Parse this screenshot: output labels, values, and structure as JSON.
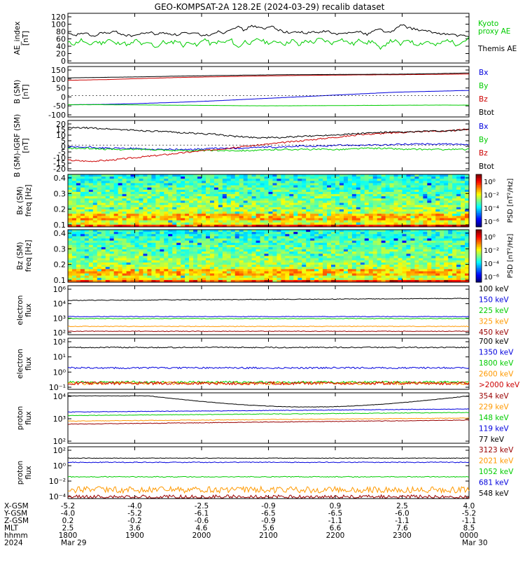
{
  "title": "GEO-KOMPSAT-2A 128.2E (2024-03-29) recalib dataset",
  "colors": {
    "black": "#000000",
    "red": "#cc0000",
    "blue": "#0000dd",
    "green": "#00cc00",
    "orange": "#ff9900",
    "darkred": "#990000",
    "darkblue": "#0000aa"
  },
  "chart_data": [
    {
      "type": "line",
      "ylabel": "AE index [nT]",
      "yticks": [
        "120",
        "100",
        "80",
        "60",
        "40",
        "20",
        "0"
      ],
      "ylim": [
        0,
        120
      ],
      "series": [
        {
          "name": "Kyoto proxy AE",
          "color": "#00cc00",
          "values": [
            48,
            45,
            56,
            40,
            52,
            46,
            58,
            44,
            50,
            40,
            55,
            42,
            48,
            36,
            50,
            46,
            54,
            40,
            52,
            38,
            60,
            44,
            50,
            48,
            56,
            34,
            52,
            46,
            58,
            50,
            47,
            52,
            44,
            56,
            40,
            54,
            48,
            58,
            52,
            46,
            60,
            50,
            44,
            56,
            48,
            52,
            28,
            50,
            54,
            42,
            58,
            44,
            46,
            52,
            40,
            48,
            56,
            44,
            50,
            60
          ]
        },
        {
          "name": "Themis AE",
          "color": "#000000",
          "values": [
            72,
            66,
            74,
            70,
            64,
            76,
            72,
            78,
            70,
            66,
            68,
            72,
            76,
            70,
            74,
            72,
            68,
            75,
            70,
            73,
            66,
            70,
            78,
            74,
            86,
            90,
            80,
            94,
            88,
            84,
            92,
            82,
            76,
            74,
            78,
            72,
            76,
            74,
            80,
            72,
            70,
            74,
            78,
            76,
            70,
            80,
            84,
            74,
            80,
            96,
            88,
            84,
            80,
            78,
            74,
            72,
            70,
            68,
            66,
            64
          ]
        }
      ],
      "legend": [
        "Kyoto proxy AE",
        "Themis AE"
      ]
    },
    {
      "type": "line",
      "ylabel": "B (SM) [nT]",
      "yticks": [
        "150",
        "100",
        "50",
        "0",
        "-50",
        "-100"
      ],
      "ylim": [
        -110,
        155
      ],
      "series": [
        {
          "name": "Bx",
          "color": "#0000dd",
          "values": [
            -52,
            -50,
            -45,
            -38,
            -30,
            -20,
            -10,
            0,
            10,
            20,
            25,
            30
          ]
        },
        {
          "name": "By",
          "color": "#00cc00",
          "values": [
            -52,
            -52,
            -53,
            -55,
            -56,
            -58,
            -58,
            -57,
            -56,
            -55,
            -54,
            -54
          ]
        },
        {
          "name": "Bz",
          "color": "#cc0000",
          "values": [
            88,
            92,
            98,
            104,
            108,
            112,
            115,
            117,
            119,
            120,
            122,
            124
          ]
        },
        {
          "name": "Btot",
          "color": "#000000",
          "values": [
            102,
            105,
            108,
            112,
            115,
            118,
            120,
            121,
            122,
            123,
            126,
            130
          ]
        }
      ],
      "legend": [
        "Bx",
        "By",
        "Bz",
        "Btot"
      ]
    },
    {
      "type": "line",
      "ylabel": "B (SM)-IGRF (SM) [nT]",
      "yticks": [
        "20",
        "15",
        "10",
        "5",
        "0",
        "-5",
        "-10",
        "-15",
        "-20"
      ],
      "ylim": [
        -22,
        21
      ],
      "series": [
        {
          "name": "Bx",
          "color": "#0000dd",
          "values": [
            -2,
            -2,
            -3,
            -3,
            -4,
            -4,
            -4,
            -3,
            -3,
            -2,
            -2,
            -1,
            -1,
            0,
            0,
            0,
            1,
            1,
            1,
            0
          ]
        },
        {
          "name": "By",
          "color": "#00cc00",
          "values": [
            -3,
            -3,
            -4,
            -4,
            -4,
            -5,
            -5,
            -5,
            -5,
            -5,
            -4,
            -4,
            -4,
            -4,
            -3,
            -3,
            -4,
            -4,
            -4,
            -4
          ]
        },
        {
          "name": "Bz",
          "color": "#cc0000",
          "values": [
            -14,
            -15,
            -14,
            -12,
            -10,
            -8,
            -6,
            -4,
            -2,
            0,
            2,
            4,
            6,
            8,
            10,
            11,
            12,
            13,
            13,
            15
          ]
        },
        {
          "name": "Btot",
          "color": "#000000",
          "values": [
            16,
            16,
            15,
            14,
            13,
            12,
            11,
            10,
            8,
            7,
            7,
            8,
            9,
            10,
            11,
            12,
            12,
            13,
            13,
            15
          ]
        }
      ],
      "legend": [
        "Bx",
        "By",
        "Bz",
        "Btot"
      ]
    },
    {
      "type": "heatmap",
      "ylabel": "Bx (SM) freq [Hz]",
      "yticks": [
        "0.4",
        "0.3",
        "0.2",
        "0.1"
      ],
      "colorbar_label": "PSD [nT²/Hz]",
      "colorbar_ticks": [
        "10⁰",
        "10⁻²",
        "10⁻⁴",
        "10⁻⁶"
      ]
    },
    {
      "type": "heatmap",
      "ylabel": "Bz (SM) freq [Hz]",
      "yticks": [
        "0.4",
        "0.3",
        "0.2",
        "0.1"
      ],
      "colorbar_label": "PSD [nT²/Hz]",
      "colorbar_ticks": [
        "10⁰",
        "10⁻²",
        "10⁻⁴",
        "10⁻⁶"
      ]
    },
    {
      "type": "line",
      "ylabel": "electron flux",
      "yticks": [
        "10⁶",
        "10⁴",
        "10³",
        "10²"
      ],
      "series": [
        {
          "name": "100 keV",
          "color": "#000000"
        },
        {
          "name": "150 keV",
          "color": "#0000dd"
        },
        {
          "name": "225 keV",
          "color": "#00cc00"
        },
        {
          "name": "325 keV",
          "color": "#ff9900"
        },
        {
          "name": "450 keV",
          "color": "#990000"
        }
      ],
      "legend": [
        "100 keV",
        "150 keV",
        "225 keV",
        "325 keV",
        "450 keV"
      ]
    },
    {
      "type": "line",
      "ylabel": "electron flux",
      "yticks": [
        "10²",
        "10¹",
        "10⁰",
        "10⁻¹"
      ],
      "series": [
        {
          "name": "700 keV",
          "color": "#000000"
        },
        {
          "name": "1350 keV",
          "color": "#0000dd"
        },
        {
          "name": "1800 keV",
          "color": "#00cc00"
        },
        {
          "name": "2600 keV",
          "color": "#ff9900"
        },
        {
          "name": ">2000 keV",
          "color": "#cc0000"
        }
      ],
      "legend": [
        "700 keV",
        "1350 keV",
        "1800 keV",
        "2600 keV",
        ">2000 keV"
      ]
    },
    {
      "type": "line",
      "ylabel": "proton flux",
      "yticks": [
        "10⁴",
        "10³",
        "10²"
      ],
      "series": [
        {
          "name": "354 keV",
          "color": "#990000"
        },
        {
          "name": "229 keV",
          "color": "#ff9900"
        },
        {
          "name": "148 keV",
          "color": "#00cc00"
        },
        {
          "name": "119 keV",
          "color": "#0000dd"
        },
        {
          "name": "77 keV",
          "color": "#000000"
        }
      ],
      "legend": [
        "354 keV",
        "229 keV",
        "148 keV",
        "119 keV",
        "77 keV"
      ]
    },
    {
      "type": "line",
      "ylabel": "proton flux",
      "yticks": [
        "10²",
        "10⁰",
        "10⁻²",
        "10⁻⁴"
      ],
      "series": [
        {
          "name": "3123 keV",
          "color": "#990000"
        },
        {
          "name": "2021 keV",
          "color": "#ff9900"
        },
        {
          "name": "1052 keV",
          "color": "#00cc00"
        },
        {
          "name": "681 keV",
          "color": "#0000dd"
        },
        {
          "name": "548 keV",
          "color": "#000000"
        }
      ],
      "legend": [
        "3123 keV",
        "2021 keV",
        "1052 keV",
        "681 keV",
        "548 keV"
      ]
    }
  ],
  "ephemeris": {
    "row_labels": [
      "X-GSM",
      "Y-GSM",
      "Z-GSM",
      "MLT",
      "hhmm",
      "2024"
    ],
    "columns": [
      [
        "-5.2",
        "-4.0",
        "0.2",
        "2.5",
        "1800",
        "Mar 29"
      ],
      [
        "-4.0",
        "-5.2",
        "-0.2",
        "3.6",
        "1900",
        ""
      ],
      [
        "-2.5",
        "-6.1",
        "-0.6",
        "4.6",
        "2000",
        ""
      ],
      [
        "-0.9",
        "-6.5",
        "-0.9",
        "5.6",
        "2100",
        ""
      ],
      [
        "0.9",
        "-6.5",
        "-1.1",
        "6.6",
        "2200",
        ""
      ],
      [
        "2.5",
        "-6.0",
        "-1.1",
        "7.6",
        "2300",
        ""
      ],
      [
        "4.0",
        "-5.2",
        "-1.1",
        "8.5",
        "0000",
        "Mar 30"
      ]
    ]
  }
}
